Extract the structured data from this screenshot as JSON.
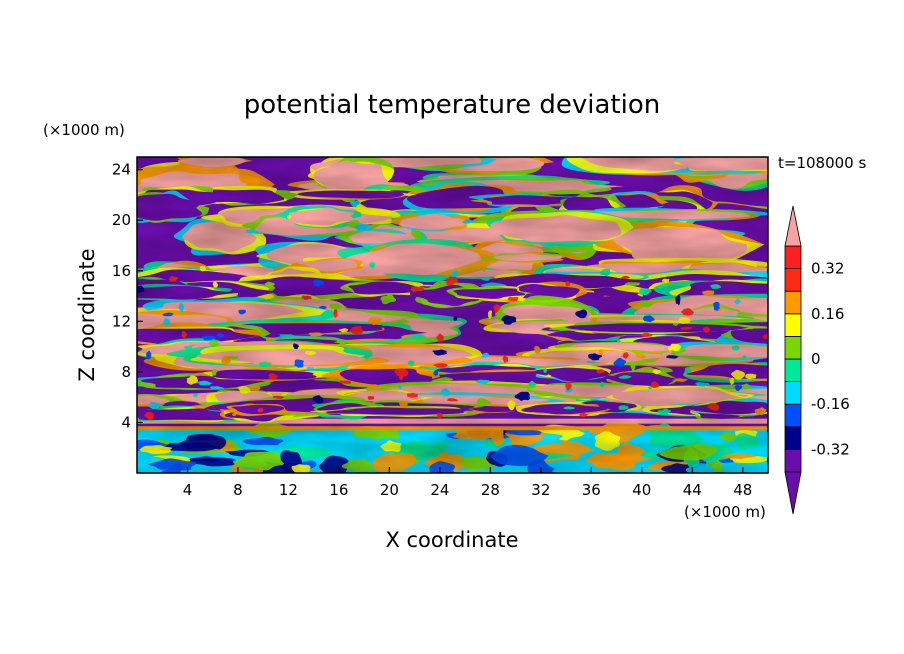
{
  "chart_data": {
    "type": "heatmap",
    "title": "potential temperature deviation",
    "xlabel": "X coordinate",
    "ylabel": "Z coordinate",
    "x_unit": "(×1000 m)",
    "y_unit": "(×1000 m)",
    "time_label": "t=108000 s",
    "xlim": [
      0,
      50
    ],
    "ylim": [
      0,
      25
    ],
    "x_ticks": [
      4,
      8,
      12,
      16,
      20,
      24,
      28,
      32,
      36,
      40,
      44,
      48
    ],
    "y_ticks": [
      4,
      8,
      12,
      16,
      20,
      24
    ],
    "colorbar": {
      "labels": [
        "0.32",
        "0.16",
        "0",
        "-0.16",
        "-0.32"
      ],
      "label_values": [
        0.32,
        0.16,
        0,
        -0.16,
        -0.32
      ],
      "levels": [
        -0.4,
        -0.32,
        -0.24,
        -0.16,
        -0.08,
        0,
        0.08,
        0.16,
        0.24,
        0.32,
        0.4
      ],
      "colors": [
        "#6a0dad",
        "#6a0dad",
        "#00008b",
        "#0050ff",
        "#00dcff",
        "#00e89a",
        "#7ad800",
        "#ffff00",
        "#ff9a00",
        "#ff2a14",
        "#ff1f1f",
        "#f7a3a3"
      ],
      "under_color": "#6a0dad",
      "over_color": "#f7a3a3",
      "extend": "both"
    }
  }
}
